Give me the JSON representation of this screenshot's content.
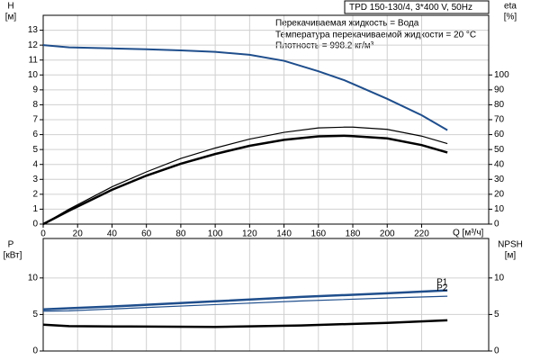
{
  "chart_data": [
    {
      "type": "line",
      "title": "TPD 150-130/4, 3*400 V, 50Hz",
      "annotations": [
        "Перекачиваемая жидкость = Вода",
        "Температура перекачиваемой жидкости = 20 °C",
        "Плотность = 998.2 кг/м³"
      ],
      "ylabel": "H",
      "yunit": "[м]",
      "y2label": "eta",
      "y2unit": "[%]",
      "xlabel": "Q [м³/ч]",
      "xlim": [
        0,
        259
      ],
      "xticks": [
        0,
        20,
        40,
        60,
        80,
        100,
        120,
        140,
        160,
        180,
        200,
        220
      ],
      "ylim": [
        0,
        14
      ],
      "yticks": [
        0,
        1,
        2,
        3,
        4,
        5,
        6,
        7,
        8,
        9,
        10,
        11,
        12,
        13
      ],
      "y2lim": [
        0,
        140
      ],
      "y2ticks": [
        0,
        10,
        20,
        30,
        40,
        50,
        60,
        70,
        80,
        90,
        100
      ],
      "grid": true,
      "x": [
        0,
        15,
        40,
        60,
        80,
        100,
        120,
        140,
        160,
        175,
        180,
        200,
        220,
        235
      ],
      "series": [
        {
          "color": "#1f4e8c",
          "line_width": 2,
          "values": [
            12,
            11.85,
            11.78,
            11.72,
            11.65,
            11.55,
            11.35,
            10.95,
            10.25,
            9.65,
            9.4,
            8.4,
            7.3,
            6.3
          ]
        },
        {
          "color": "#000000",
          "line_width": 1.2,
          "axis": "y2",
          "values": [
            0,
            10,
            25,
            35,
            44,
            51,
            57,
            61.5,
            64.5,
            65,
            65,
            63.5,
            59,
            54
          ]
        },
        {
          "color": "#000000",
          "line_width": 2.5,
          "axis": "y2",
          "values": [
            0,
            9,
            23,
            32.5,
            40.5,
            47,
            52.5,
            56.5,
            58.8,
            59.2,
            59,
            57.5,
            53,
            48
          ]
        }
      ]
    },
    {
      "type": "line",
      "ylabel": "P",
      "yunit": "[кВт]",
      "y2label": "NPSH",
      "y2unit": "[м]",
      "xlim": [
        0,
        259
      ],
      "ylim": [
        0,
        15.4
      ],
      "yticks": [
        0,
        5,
        10
      ],
      "y2lim": [
        0,
        15.4
      ],
      "y2ticks": [
        0,
        5,
        10
      ],
      "grid": true,
      "x": [
        0,
        15,
        50,
        100,
        150,
        200,
        235
      ],
      "series": [
        {
          "name": "P1",
          "color": "#1f4e8c",
          "line_width": 2.5,
          "values": [
            5.7,
            5.85,
            6.2,
            6.8,
            7.4,
            7.9,
            8.3
          ]
        },
        {
          "name": "P2",
          "color": "#1f4e8c",
          "line_width": 1.2,
          "values": [
            5.45,
            5.5,
            5.85,
            6.35,
            6.85,
            7.25,
            7.5
          ]
        },
        {
          "color": "#000000",
          "line_width": 2.5,
          "axis": "y2",
          "values": [
            3.6,
            3.4,
            3.35,
            3.3,
            3.5,
            3.85,
            4.2
          ]
        }
      ]
    }
  ]
}
